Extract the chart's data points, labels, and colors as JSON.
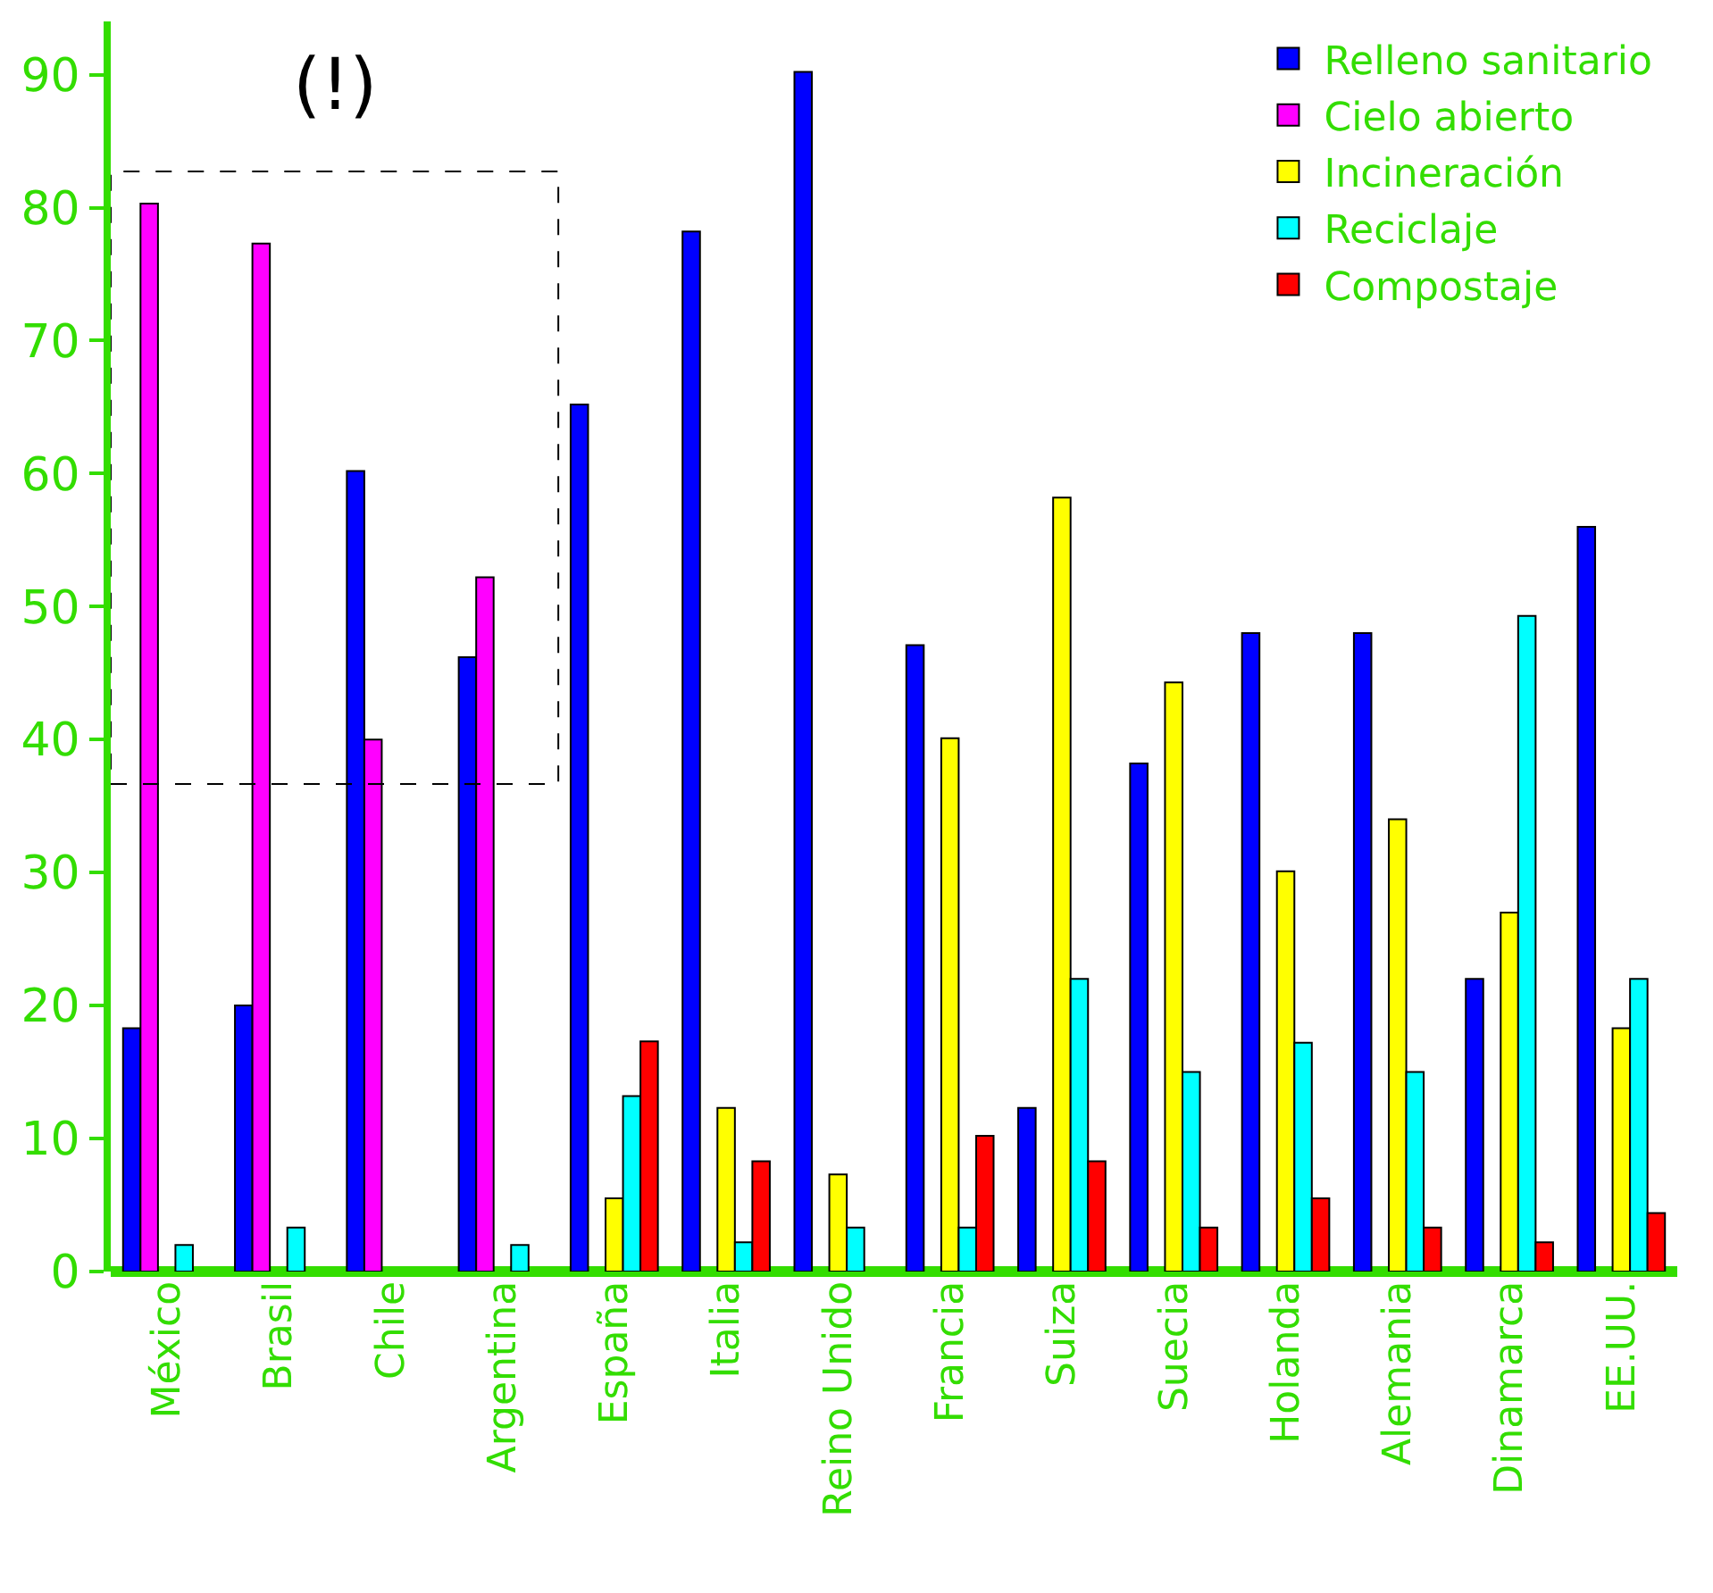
{
  "chart_data": {
    "type": "bar",
    "categories": [
      "México",
      "Brasil",
      "Chile",
      "Argentina",
      "España",
      "Italia",
      "Reino Unido",
      "Francia",
      "Suiza",
      "Suecia",
      "Holanda",
      "Alemania",
      "Dinamarca",
      "EE.UU."
    ],
    "series": [
      {
        "name": "Relleno sanitario",
        "color": "#0000ff",
        "values": [
          18.3,
          20,
          60.2,
          46.2,
          65.2,
          78.2,
          90.2,
          47.1,
          12.3,
          38.2,
          48,
          48,
          22,
          56
        ]
      },
      {
        "name": "Cielo abierto",
        "color": "#ff00ff",
        "values": [
          80.3,
          77.3,
          40,
          52.2,
          null,
          null,
          null,
          null,
          null,
          null,
          null,
          null,
          null,
          null
        ]
      },
      {
        "name": "Incineración",
        "color": "#ffff00",
        "values": [
          null,
          null,
          null,
          null,
          5.5,
          12.3,
          7.3,
          40.1,
          58.2,
          44.3,
          30.1,
          34,
          27,
          18.3
        ]
      },
      {
        "name": "Reciclaje",
        "color": "#00ffff",
        "values": [
          2,
          3.3,
          null,
          2,
          13.2,
          2.2,
          3.3,
          3.3,
          22,
          15,
          17.2,
          15,
          49.3,
          22
        ]
      },
      {
        "name": "Compostaje",
        "color": "#ff0000",
        "values": [
          null,
          null,
          null,
          null,
          17.3,
          8.3,
          null,
          10.2,
          8.3,
          3.3,
          5.5,
          3.3,
          2.2,
          4.4
        ]
      }
    ],
    "ylim": [
      0,
      94
    ],
    "yticks": [
      0,
      10,
      20,
      30,
      40,
      50,
      60,
      70,
      80,
      90
    ],
    "legend": "top right",
    "annotations": [
      "(!)"
    ]
  }
}
